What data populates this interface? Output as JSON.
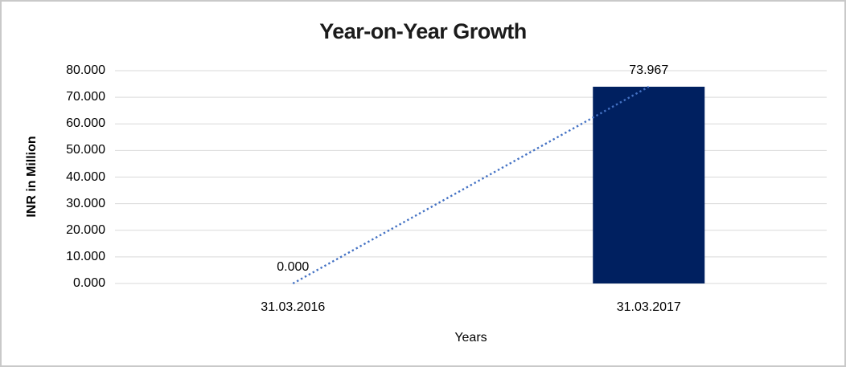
{
  "chart_data": {
    "type": "bar",
    "title": "Year-on-Year Growth",
    "xlabel": "Years",
    "ylabel": "INR in Million",
    "categories": [
      "31.03.2016",
      "31.03.2017"
    ],
    "values": [
      0.0,
      73.967
    ],
    "data_labels": [
      "0.000",
      "73.967"
    ],
    "ylim": [
      0,
      80
    ],
    "yticks": [
      {
        "value": 0,
        "label": "0.000"
      },
      {
        "value": 10,
        "label": "10.000"
      },
      {
        "value": 20,
        "label": "20.000"
      },
      {
        "value": 30,
        "label": "30.000"
      },
      {
        "value": 40,
        "label": "40.000"
      },
      {
        "value": 50,
        "label": "50.000"
      },
      {
        "value": 60,
        "label": "60.000"
      },
      {
        "value": 70,
        "label": "70.000"
      },
      {
        "value": 80,
        "label": "80.000"
      },
      {
        "value": 90,
        "label": ""
      }
    ],
    "grid": true,
    "legend": false,
    "trendline": {
      "type": "linear",
      "style": "dotted",
      "from_point": 0,
      "to_point": 1
    },
    "colors": {
      "bar": "#002060",
      "trendline": "#4472C4",
      "gridline": "#d9d9d9",
      "text": "#000000",
      "title": "#1b1b1b",
      "border": "#c9c9c9",
      "background": "#ffffff"
    }
  }
}
